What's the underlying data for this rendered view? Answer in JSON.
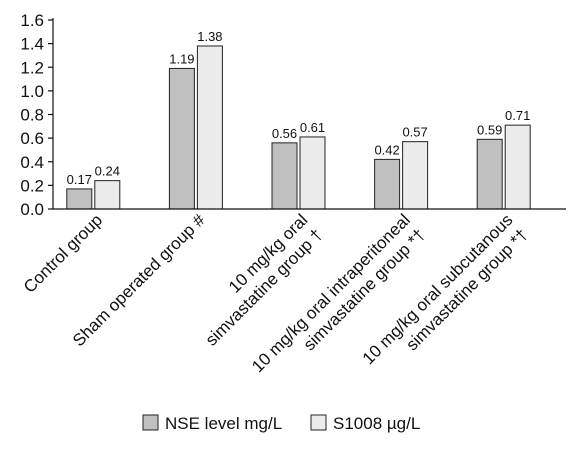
{
  "chart_data": {
    "type": "bar",
    "categories": [
      [
        "Control group"
      ],
      [
        "Sham operated group #"
      ],
      [
        "10 mg/kg oral",
        "simvastatine group †"
      ],
      [
        "10 mg/kg oral intraperitoneal",
        "simvastatine group *†"
      ],
      [
        "10 mg/kg oral subcutanous",
        "simvastatine group *†"
      ]
    ],
    "series": [
      {
        "name": "NSE level mg/L",
        "values": [
          0.17,
          1.19,
          0.56,
          0.42,
          0.59
        ],
        "color": "#c0c0c0"
      },
      {
        "name": "S1008 µg/L",
        "values": [
          0.24,
          1.38,
          0.61,
          0.57,
          0.71
        ],
        "color": "#ececec"
      }
    ],
    "value_labels": [
      [
        "0.17",
        "1.19",
        "0.56",
        "0.42",
        "0.59"
      ],
      [
        "0.24",
        "1.38",
        "0.61",
        "0.57",
        "0.71"
      ]
    ],
    "yticks": [
      "0.0",
      "0.2",
      "0.4",
      "0.6",
      "0.8",
      "1.0",
      "1.2",
      "1.4",
      "1.6"
    ],
    "ylim": [
      0,
      1.6
    ],
    "grid": false,
    "legend_position": "bottom-center"
  }
}
